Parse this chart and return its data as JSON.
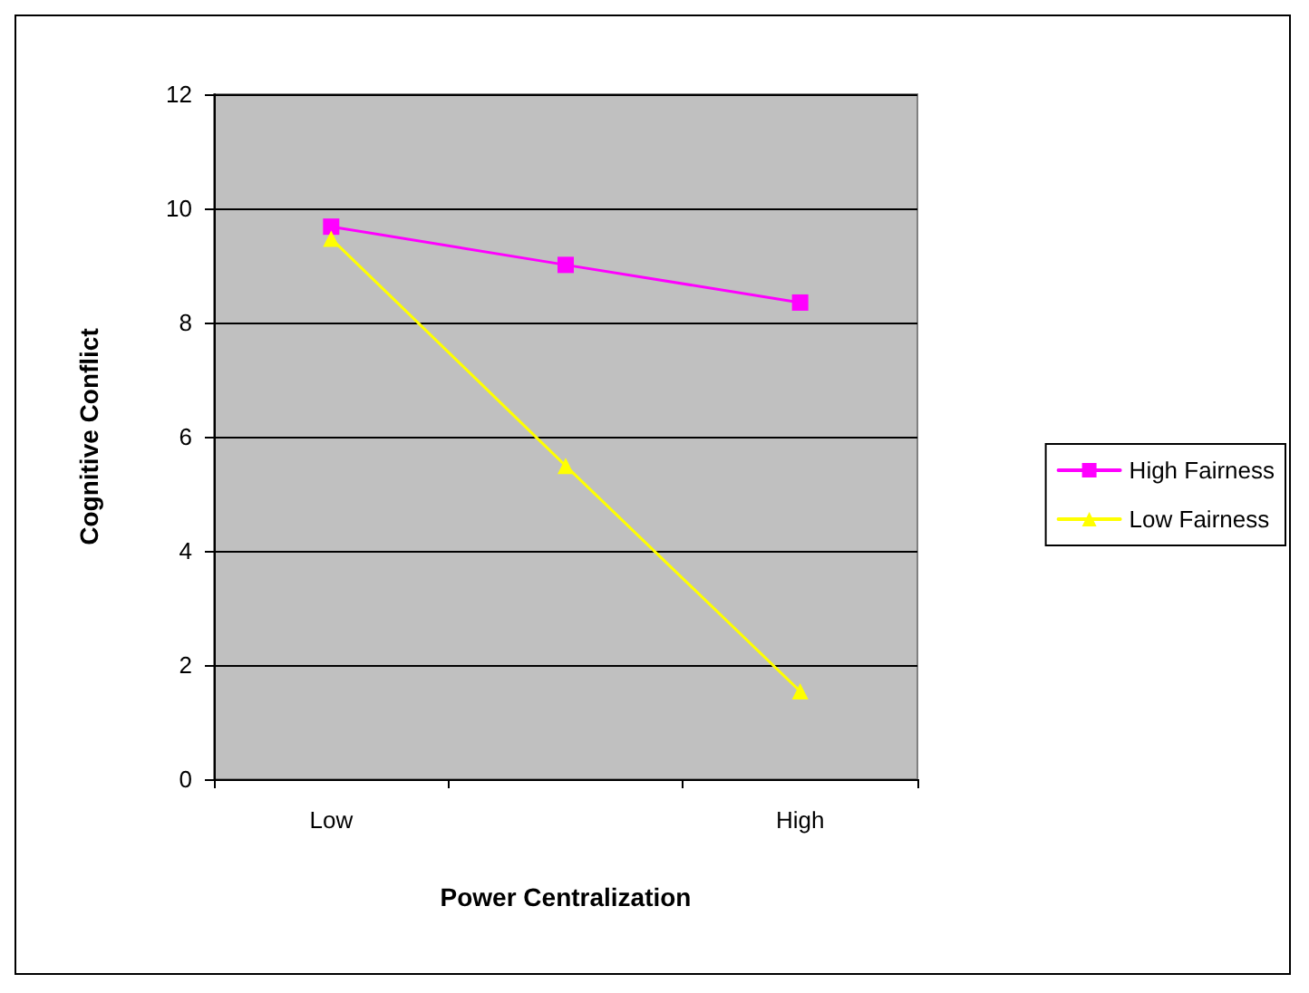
{
  "chart_data": {
    "type": "line",
    "xlabel": "Power Centralization",
    "ylabel": "Cognitive Conflict",
    "categories": [
      "Low",
      null,
      "High"
    ],
    "series": [
      {
        "name": "High Fairness",
        "color": "#ff00ff",
        "marker": "square",
        "values": [
          9.68,
          9.01,
          8.35
        ]
      },
      {
        "name": "Low Fairness",
        "color": "#ffff00",
        "marker": "triangle",
        "values": [
          9.47,
          5.49,
          1.54
        ]
      }
    ],
    "ylim": [
      0,
      12
    ],
    "yticks": [
      0,
      2,
      4,
      6,
      8,
      10,
      12
    ],
    "grid": "y",
    "legend": "right"
  }
}
